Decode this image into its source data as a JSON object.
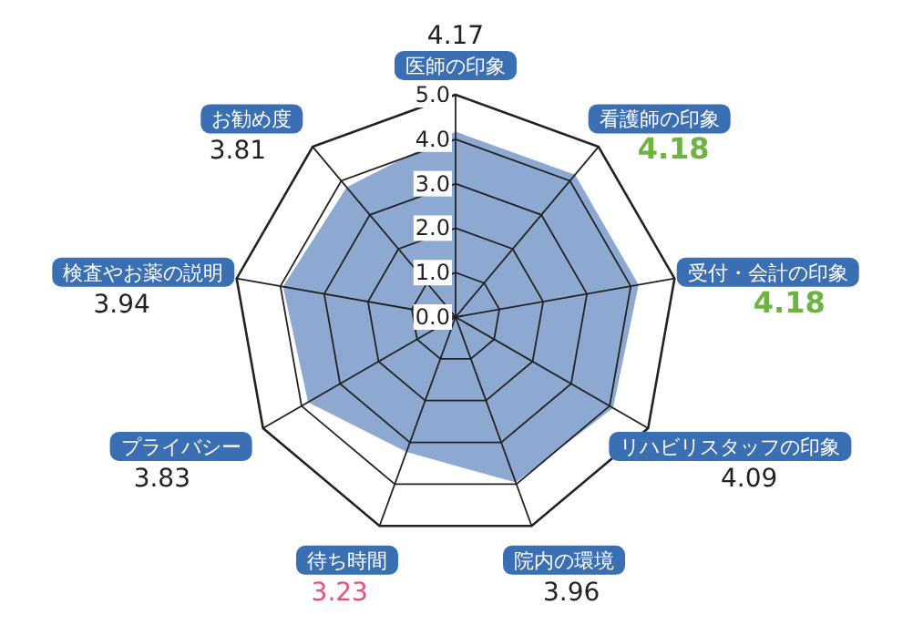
{
  "chart_data": {
    "type": "radar",
    "categories": [
      "医師の印象",
      "看護師の印象",
      "受付・会計の印象",
      "リハビリスタッフの印象",
      "院内の環境",
      "待ち時間",
      "プライバシー",
      "検査やお薬の説明",
      "お勧め度"
    ],
    "series": [
      {
        "color": "#8ea9d1",
        "values": [
          4.17,
          4.18,
          4.18,
          4.09,
          3.96,
          3.23,
          3.83,
          3.94,
          3.81
        ]
      }
    ],
    "ylim": [
      0,
      5
    ],
    "yticks": [
      {
        "value": 0,
        "label": "0.0"
      },
      {
        "value": 1,
        "label": "1.0"
      },
      {
        "value": 2,
        "label": "2.0"
      },
      {
        "value": 3,
        "label": "3.0"
      },
      {
        "value": 4,
        "label": "4.0"
      },
      {
        "value": 5,
        "label": "5.0"
      }
    ],
    "annotations": [
      "4.17",
      "4.18",
      "4.18",
      "4.09",
      "3.96",
      "3.23",
      "3.83",
      "3.94",
      "3.81"
    ]
  }
}
